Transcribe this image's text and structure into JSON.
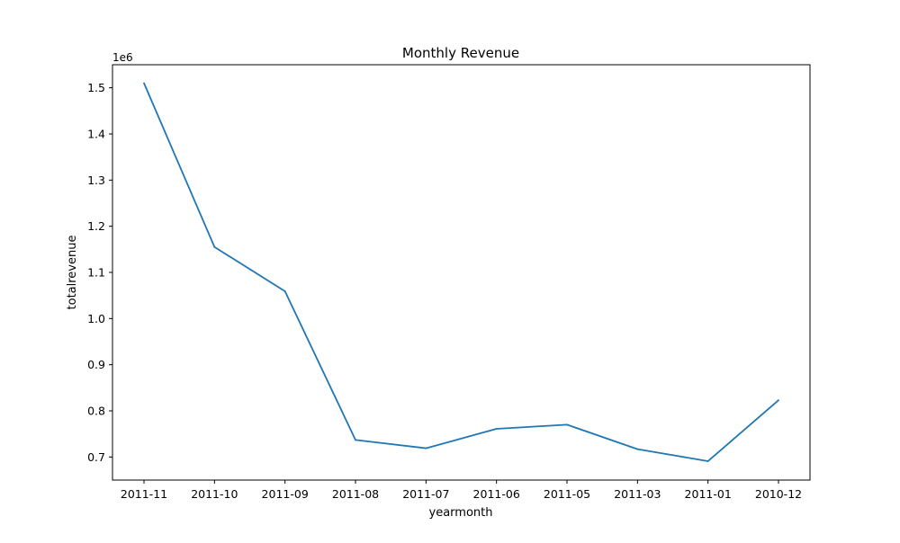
{
  "colors": {
    "line": "#1f77b4",
    "axes": "#000000",
    "background": "#ffffff"
  },
  "chart_data": {
    "type": "line",
    "title": "Monthly Revenue",
    "xlabel": "yearmonth",
    "ylabel": "totalrevenue",
    "y_offset_label": "1e6",
    "y_scale": 1000000,
    "grid": false,
    "legend": "none",
    "x_order": "descending",
    "categories": [
      "2011-11",
      "2011-10",
      "2011-09",
      "2011-08",
      "2011-07",
      "2011-06",
      "2011-05",
      "2011-03",
      "2011-01",
      "2010-12"
    ],
    "values": [
      1510000,
      1155000,
      1059000,
      737000,
      719000,
      761000,
      770000,
      717000,
      691000,
      823000
    ],
    "ylim": [
      650000,
      1550000
    ],
    "yticks": [
      700000,
      800000,
      900000,
      1000000,
      1100000,
      1200000,
      1300000,
      1400000,
      1500000
    ],
    "ytick_labels": [
      "0.7",
      "0.8",
      "0.9",
      "1.0",
      "1.1",
      "1.2",
      "1.3",
      "1.4",
      "1.5"
    ]
  }
}
